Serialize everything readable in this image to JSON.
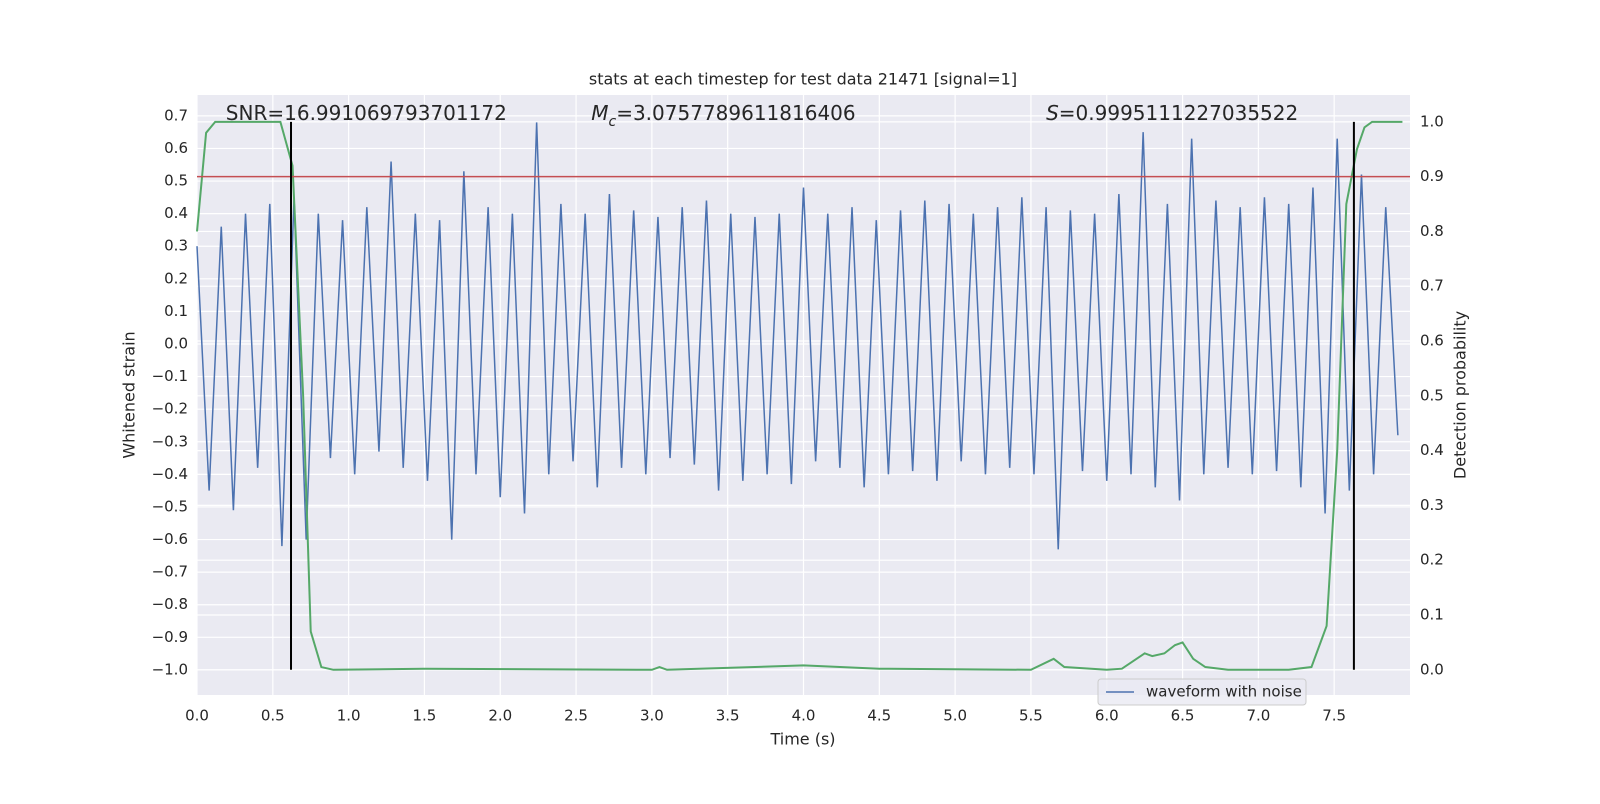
{
  "chart_data": {
    "type": "line",
    "title": "stats at each timestep for test data 21471 [signal=1]",
    "x_label": "Time (s)",
    "y_label": "Whitened strain",
    "y2_label": "Detection probability",
    "grid": true,
    "legend": "lower right",
    "xlim": [
      0,
      8.0
    ],
    "xticks": [
      {
        "value": 0,
        "label": "0.0"
      },
      0.5,
      {
        "value": 1,
        "label": "1.0"
      },
      1.5,
      {
        "value": 2,
        "label": "2.0"
      },
      2.5,
      {
        "value": 3,
        "label": "3.0"
      },
      3.5,
      {
        "value": 4,
        "label": "4.0"
      },
      4.5,
      {
        "value": 5,
        "label": "5.0"
      },
      5.5,
      {
        "value": 6,
        "label": "6.0"
      },
      6.5,
      {
        "value": 7,
        "label": "7.0"
      },
      7.5
    ],
    "ylim": [
      -1.077,
      0.764
    ],
    "yticks": [
      {
        "value": -1.0,
        "label": "−1.0"
      },
      {
        "value": -0.9,
        "label": "−0.9"
      },
      {
        "value": -0.8,
        "label": "−0.8"
      },
      {
        "value": -0.7,
        "label": "−0.7"
      },
      {
        "value": -0.6,
        "label": "−0.6"
      },
      {
        "value": -0.5,
        "label": "−0.5"
      },
      {
        "value": -0.4,
        "label": "−0.4"
      },
      {
        "value": -0.3,
        "label": "−0.3"
      },
      {
        "value": -0.2,
        "label": "−0.2"
      },
      {
        "value": -0.1,
        "label": "−0.1"
      },
      {
        "value": 0,
        "label": "0.0"
      },
      0.1,
      0.2,
      0.3,
      0.4,
      0.5,
      0.6,
      0.7
    ],
    "y2lim": [
      -0.046,
      1.049
    ],
    "y2ticks": [
      {
        "value": 0,
        "label": "0.0"
      },
      0.1,
      0.2,
      0.3,
      0.4,
      0.5,
      0.6,
      0.7,
      0.8,
      0.9,
      {
        "value": 1,
        "label": "1.0"
      }
    ],
    "annotations": [
      {
        "symbol": "SNR",
        "italic": false,
        "text": "=16.991069793701172",
        "x": 0.19
      },
      {
        "symbol": "M",
        "sub": "c",
        "italic": true,
        "text": "=3.0757789611816406",
        "x": 2.6
      },
      {
        "symbol": "S",
        "italic": true,
        "text": "=0.9995111227035522",
        "x": 5.6
      }
    ],
    "threshold": {
      "value": 0.9,
      "axis": "y2",
      "color": "#c44e52"
    },
    "vlines": {
      "x": [
        0.62,
        7.63
      ],
      "range": [
        0,
        1
      ],
      "axis": "y2",
      "color": "#000000"
    },
    "series": [
      {
        "name": "waveform with noise",
        "color": "#4c72b0",
        "x": [
          0.0,
          0.08,
          0.16,
          0.24,
          0.32,
          0.4,
          0.48,
          0.56,
          0.64,
          0.72,
          0.8,
          0.88,
          0.96,
          1.04,
          1.12,
          1.2,
          1.28,
          1.36,
          1.44,
          1.52,
          1.6,
          1.68,
          1.76,
          1.84,
          1.92,
          2.0,
          2.08,
          2.16,
          2.24,
          2.32,
          2.4,
          2.48,
          2.56,
          2.64,
          2.72,
          2.8,
          2.88,
          2.96,
          3.04,
          3.12,
          3.2,
          3.28,
          3.36,
          3.44,
          3.52,
          3.6,
          3.68,
          3.76,
          3.84,
          3.92,
          4.0,
          4.08,
          4.16,
          4.24,
          4.32,
          4.4,
          4.48,
          4.56,
          4.64,
          4.72,
          4.8,
          4.88,
          4.96,
          5.04,
          5.12,
          5.2,
          5.28,
          5.36,
          5.44,
          5.52,
          5.6,
          5.68,
          5.76,
          5.84,
          5.92,
          6.0,
          6.08,
          6.16,
          6.24,
          6.32,
          6.4,
          6.48,
          6.56,
          6.64,
          6.72,
          6.8,
          6.88,
          6.96,
          7.04,
          7.12,
          7.2,
          7.28,
          7.36,
          7.44,
          7.52,
          7.6,
          7.68,
          7.76,
          7.84,
          7.92
        ],
        "values": [
          0.3,
          -0.45,
          0.36,
          -0.51,
          0.4,
          -0.38,
          0.43,
          -0.62,
          0.45,
          -0.6,
          0.4,
          -0.35,
          0.38,
          -0.4,
          0.42,
          -0.33,
          0.56,
          -0.38,
          0.4,
          -0.42,
          0.38,
          -0.6,
          0.53,
          -0.4,
          0.42,
          -0.47,
          0.4,
          -0.52,
          0.68,
          -0.4,
          0.43,
          -0.36,
          0.4,
          -0.44,
          0.46,
          -0.38,
          0.41,
          -0.4,
          0.39,
          -0.35,
          0.42,
          -0.37,
          0.44,
          -0.45,
          0.4,
          -0.42,
          0.39,
          -0.4,
          0.4,
          -0.43,
          0.48,
          -0.36,
          0.4,
          -0.38,
          0.42,
          -0.44,
          0.38,
          -0.4,
          0.41,
          -0.39,
          0.44,
          -0.42,
          0.43,
          -0.36,
          0.4,
          -0.4,
          0.42,
          -0.38,
          0.45,
          -0.4,
          0.42,
          -0.63,
          0.41,
          -0.39,
          0.4,
          -0.42,
          0.46,
          -0.4,
          0.65,
          -0.44,
          0.43,
          -0.48,
          0.63,
          -0.4,
          0.44,
          -0.38,
          0.42,
          -0.4,
          0.45,
          -0.39,
          0.43,
          -0.44,
          0.48,
          -0.52,
          0.63,
          -0.45,
          0.52,
          -0.4,
          0.42,
          -0.28
        ]
      },
      {
        "color": "#55a868",
        "axis": "y2",
        "x": [
          0.0,
          0.06,
          0.12,
          0.55,
          0.63,
          0.7,
          0.75,
          0.82,
          0.9,
          1.5,
          3.0,
          3.05,
          3.1,
          4.0,
          4.5,
          5.5,
          5.65,
          5.72,
          6.0,
          6.1,
          6.25,
          6.3,
          6.38,
          6.45,
          6.5,
          6.57,
          6.65,
          6.8,
          7.2,
          7.35,
          7.45,
          7.52,
          7.58,
          7.65,
          7.7,
          7.75,
          7.95
        ],
        "values": [
          0.8,
          0.98,
          1.0,
          1.0,
          0.92,
          0.5,
          0.07,
          0.005,
          0.0,
          0.002,
          0.0,
          0.005,
          0.0,
          0.008,
          0.002,
          0.0,
          0.02,
          0.005,
          0.0,
          0.002,
          0.03,
          0.025,
          0.03,
          0.045,
          0.05,
          0.02,
          0.005,
          0.0,
          0.0,
          0.005,
          0.08,
          0.4,
          0.85,
          0.95,
          0.99,
          1.0,
          1.0
        ]
      }
    ]
  }
}
